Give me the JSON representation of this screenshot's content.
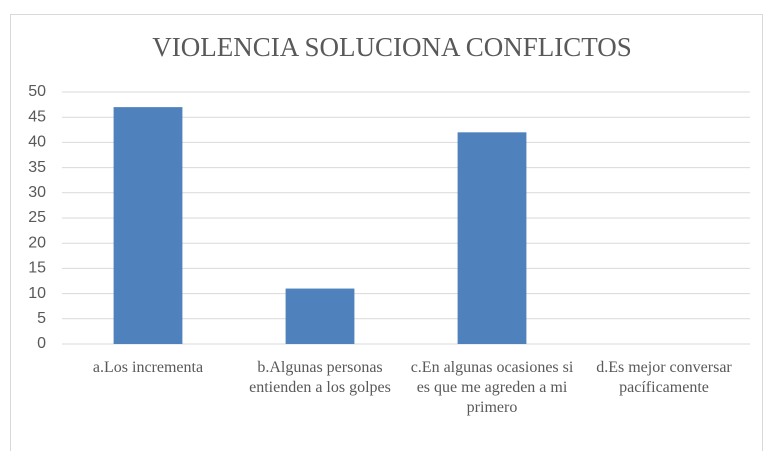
{
  "chart_data": {
    "type": "bar",
    "title": "VIOLENCIA SOLUCIONA CONFLICTOS",
    "categories": [
      "a.Los incrementa",
      "b.Algunas personas entienden a los golpes",
      "c.En algunas ocasiones si es que me agreden a mi primero",
      "d.Es mejor conversar pacíficamente"
    ],
    "values": [
      47,
      11,
      42,
      0
    ],
    "color": "#4f81bd",
    "ylim": [
      0,
      50
    ],
    "yticks": [
      0,
      5,
      10,
      15,
      20,
      25,
      30,
      35,
      40,
      45,
      50
    ],
    "grid": true
  }
}
